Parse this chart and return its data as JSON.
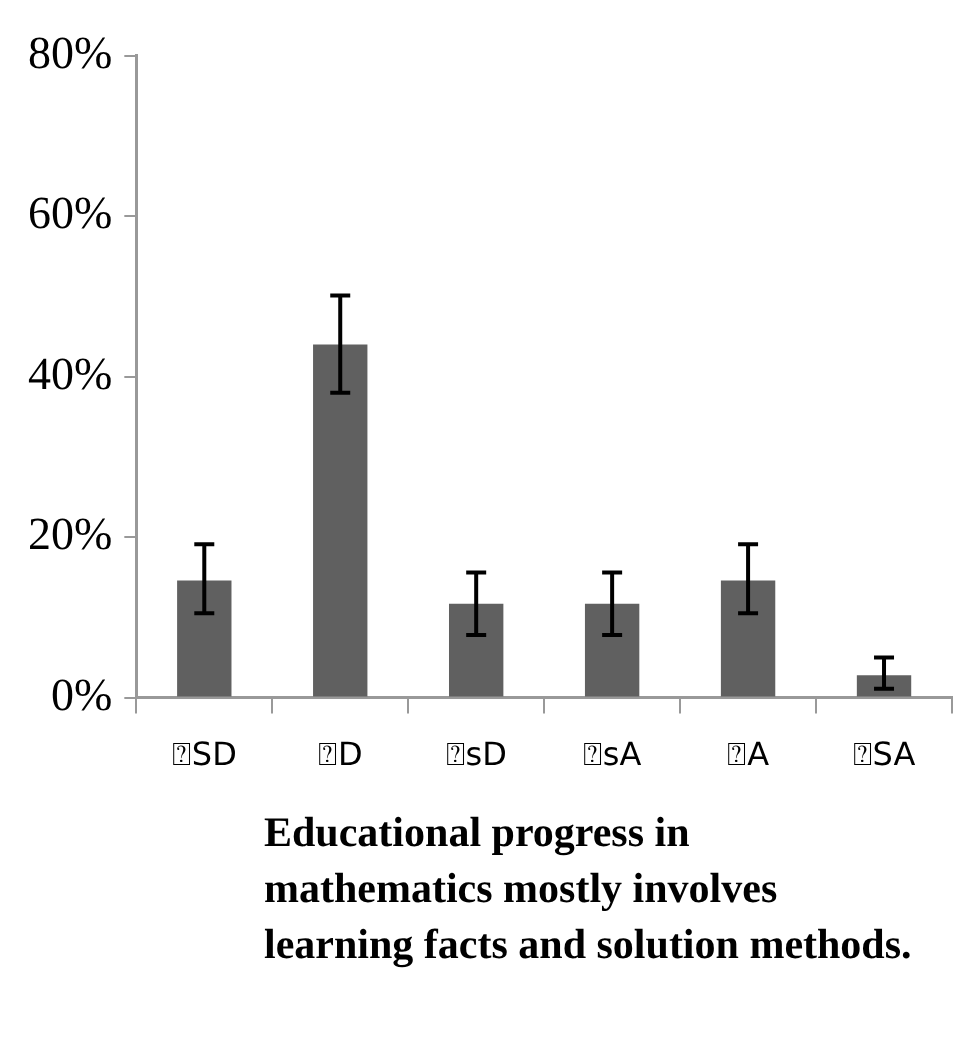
{
  "chart_data": {
    "type": "bar",
    "title": "Educational progress in mathematics mostly involves learning facts and solution methods.",
    "categories": [
      "⍰SD",
      "⍰D",
      "⍰sD",
      "⍰sA",
      "⍰A",
      "⍰SA"
    ],
    "values": [
      14.6,
      44,
      11.7,
      11.7,
      14.6,
      2.8
    ],
    "errors": [
      [
        10.5,
        19.1
      ],
      [
        38,
        50.1
      ],
      [
        7.8,
        15.6
      ],
      [
        7.8,
        15.6
      ],
      [
        10.5,
        19.1
      ],
      [
        1.1,
        5
      ]
    ],
    "color": "#606060",
    "ylim": [
      0,
      80
    ],
    "yticks": [
      {
        "value": 0,
        "label": "0%"
      },
      {
        "value": 20,
        "label": "20%"
      },
      {
        "value": 40,
        "label": "40%"
      },
      {
        "value": 60,
        "label": "60%"
      },
      {
        "value": 80,
        "label": "80%"
      }
    ],
    "grid": false,
    "legend": false
  }
}
